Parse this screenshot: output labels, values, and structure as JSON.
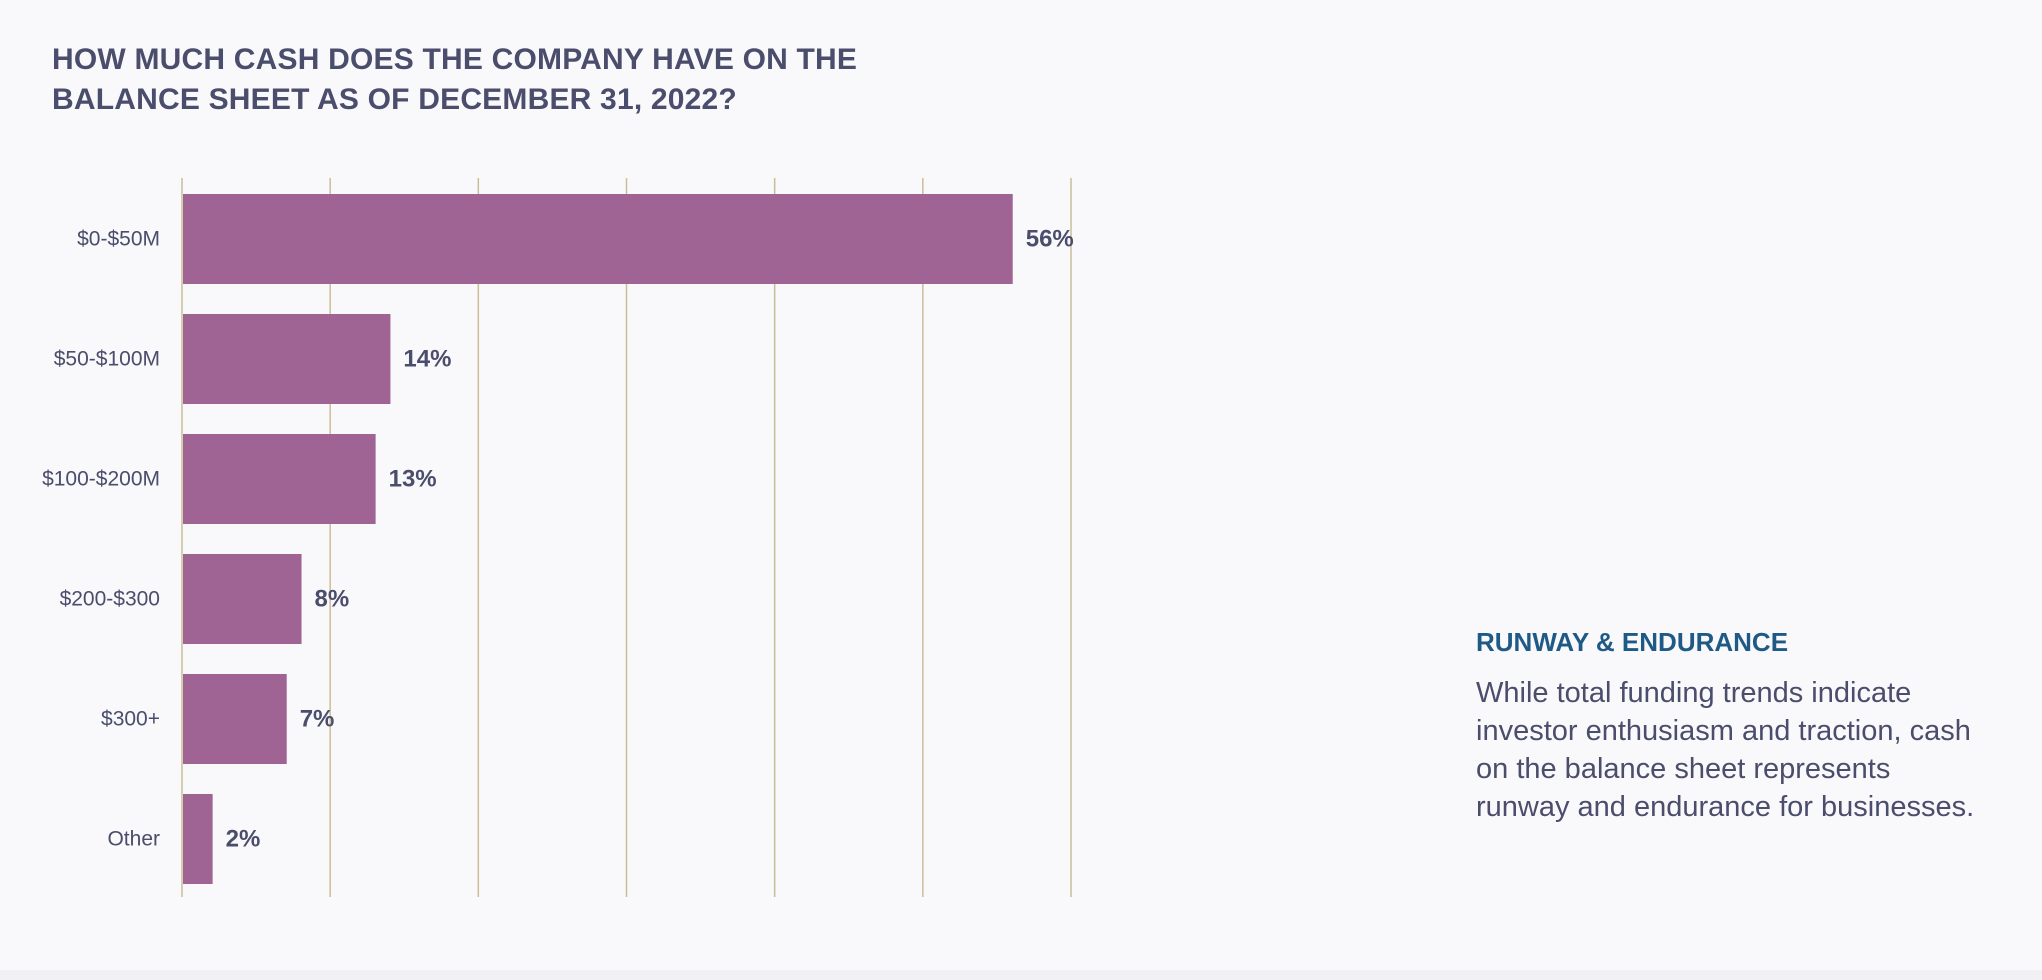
{
  "chart_data": {
    "type": "bar",
    "orientation": "horizontal",
    "title": "HOW MUCH CASH DOES THE COMPANY HAVE ON THE BALANCE SHEET AS OF DECEMBER 31, 2022?",
    "categories": [
      "$0-$50M",
      "$50-$100M",
      "$100-$200M",
      "$200-$300",
      "$300+",
      "Other"
    ],
    "values": [
      56,
      14,
      13,
      8,
      7,
      2
    ],
    "value_labels": [
      "56%",
      "14%",
      "13%",
      "8%",
      "7%",
      "2%"
    ],
    "xlim": [
      0,
      60
    ],
    "grid": true,
    "bar_color": "#a06494",
    "grid_color": "#cbbd97",
    "xlabel": "",
    "ylabel": ""
  },
  "side_panel": {
    "heading": "RUNWAY & ENDURANCE",
    "body": "While total funding trends indicate investor enthusiasm and traction, cash on the balance sheet represents runway and endurance for businesses."
  },
  "colors": {
    "background": "#f9f8fb",
    "text": "#4a4d6b",
    "heading_accent": "#1f5a86"
  }
}
